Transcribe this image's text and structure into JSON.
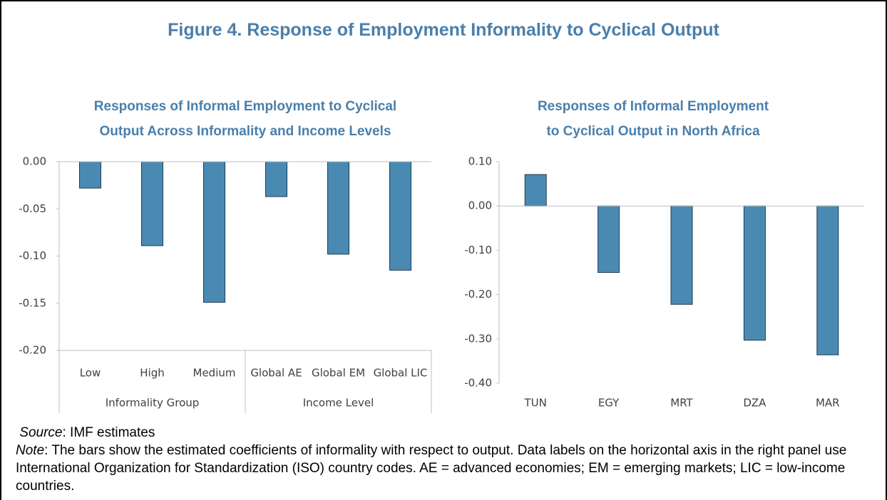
{
  "title": "Figure 4. Response of Employment Informality to Cyclical Output",
  "chart_data": [
    {
      "type": "bar",
      "title": "Responses of Informal Employment to Cyclical Output Across Informality and Income Levels",
      "color": "#4a8ab2",
      "groups": [
        {
          "name": "Informality Group",
          "categories": [
            "Low",
            "High",
            "Medium"
          ],
          "values": [
            -0.028,
            -0.089,
            -0.149
          ]
        },
        {
          "name": "Income Level",
          "categories": [
            "Global AE",
            "Global EM",
            "Global LIC"
          ],
          "values": [
            -0.037,
            -0.098,
            -0.115
          ]
        }
      ],
      "ylim": [
        -0.2,
        0
      ],
      "yticks": [
        {
          "value": -0.2,
          "label": "-0.20"
        },
        {
          "value": -0.15,
          "label": "-0.15"
        },
        {
          "value": -0.1,
          "label": "-0.10"
        },
        {
          "value": -0.05,
          "label": "-0.05"
        },
        {
          "value": 0,
          "label": "0.00"
        }
      ],
      "grid": false
    },
    {
      "type": "bar",
      "title": "Responses of Informal Employment to Cyclical Output in North Africa",
      "color": "#4a8ab2",
      "categories": [
        "TUN",
        "EGY",
        "MRT",
        "DZA",
        "MAR"
      ],
      "values": [
        0.071,
        -0.15,
        -0.222,
        -0.303,
        -0.336
      ],
      "ylim": [
        -0.4,
        0.1
      ],
      "yticks": [
        {
          "value": -0.4,
          "label": "-0.40"
        },
        {
          "value": -0.3,
          "label": "-0.30"
        },
        {
          "value": -0.2,
          "label": "-0.20"
        },
        {
          "value": -0.1,
          "label": "-0.10"
        },
        {
          "value": 0,
          "label": "0.00"
        },
        {
          "value": 0.1,
          "label": "0.10"
        }
      ],
      "grid": false
    }
  ],
  "source": {
    "label": "Source",
    "text": ": IMF estimates"
  },
  "note": {
    "label": "Note",
    "text": ": The bars show the estimated coefficients of informality with respect to output. Data labels on the horizontal axis in the right panel use International Organization for Standardization (ISO) country codes. AE = advanced economies; EM = emerging markets; LIC = low-income countries."
  }
}
